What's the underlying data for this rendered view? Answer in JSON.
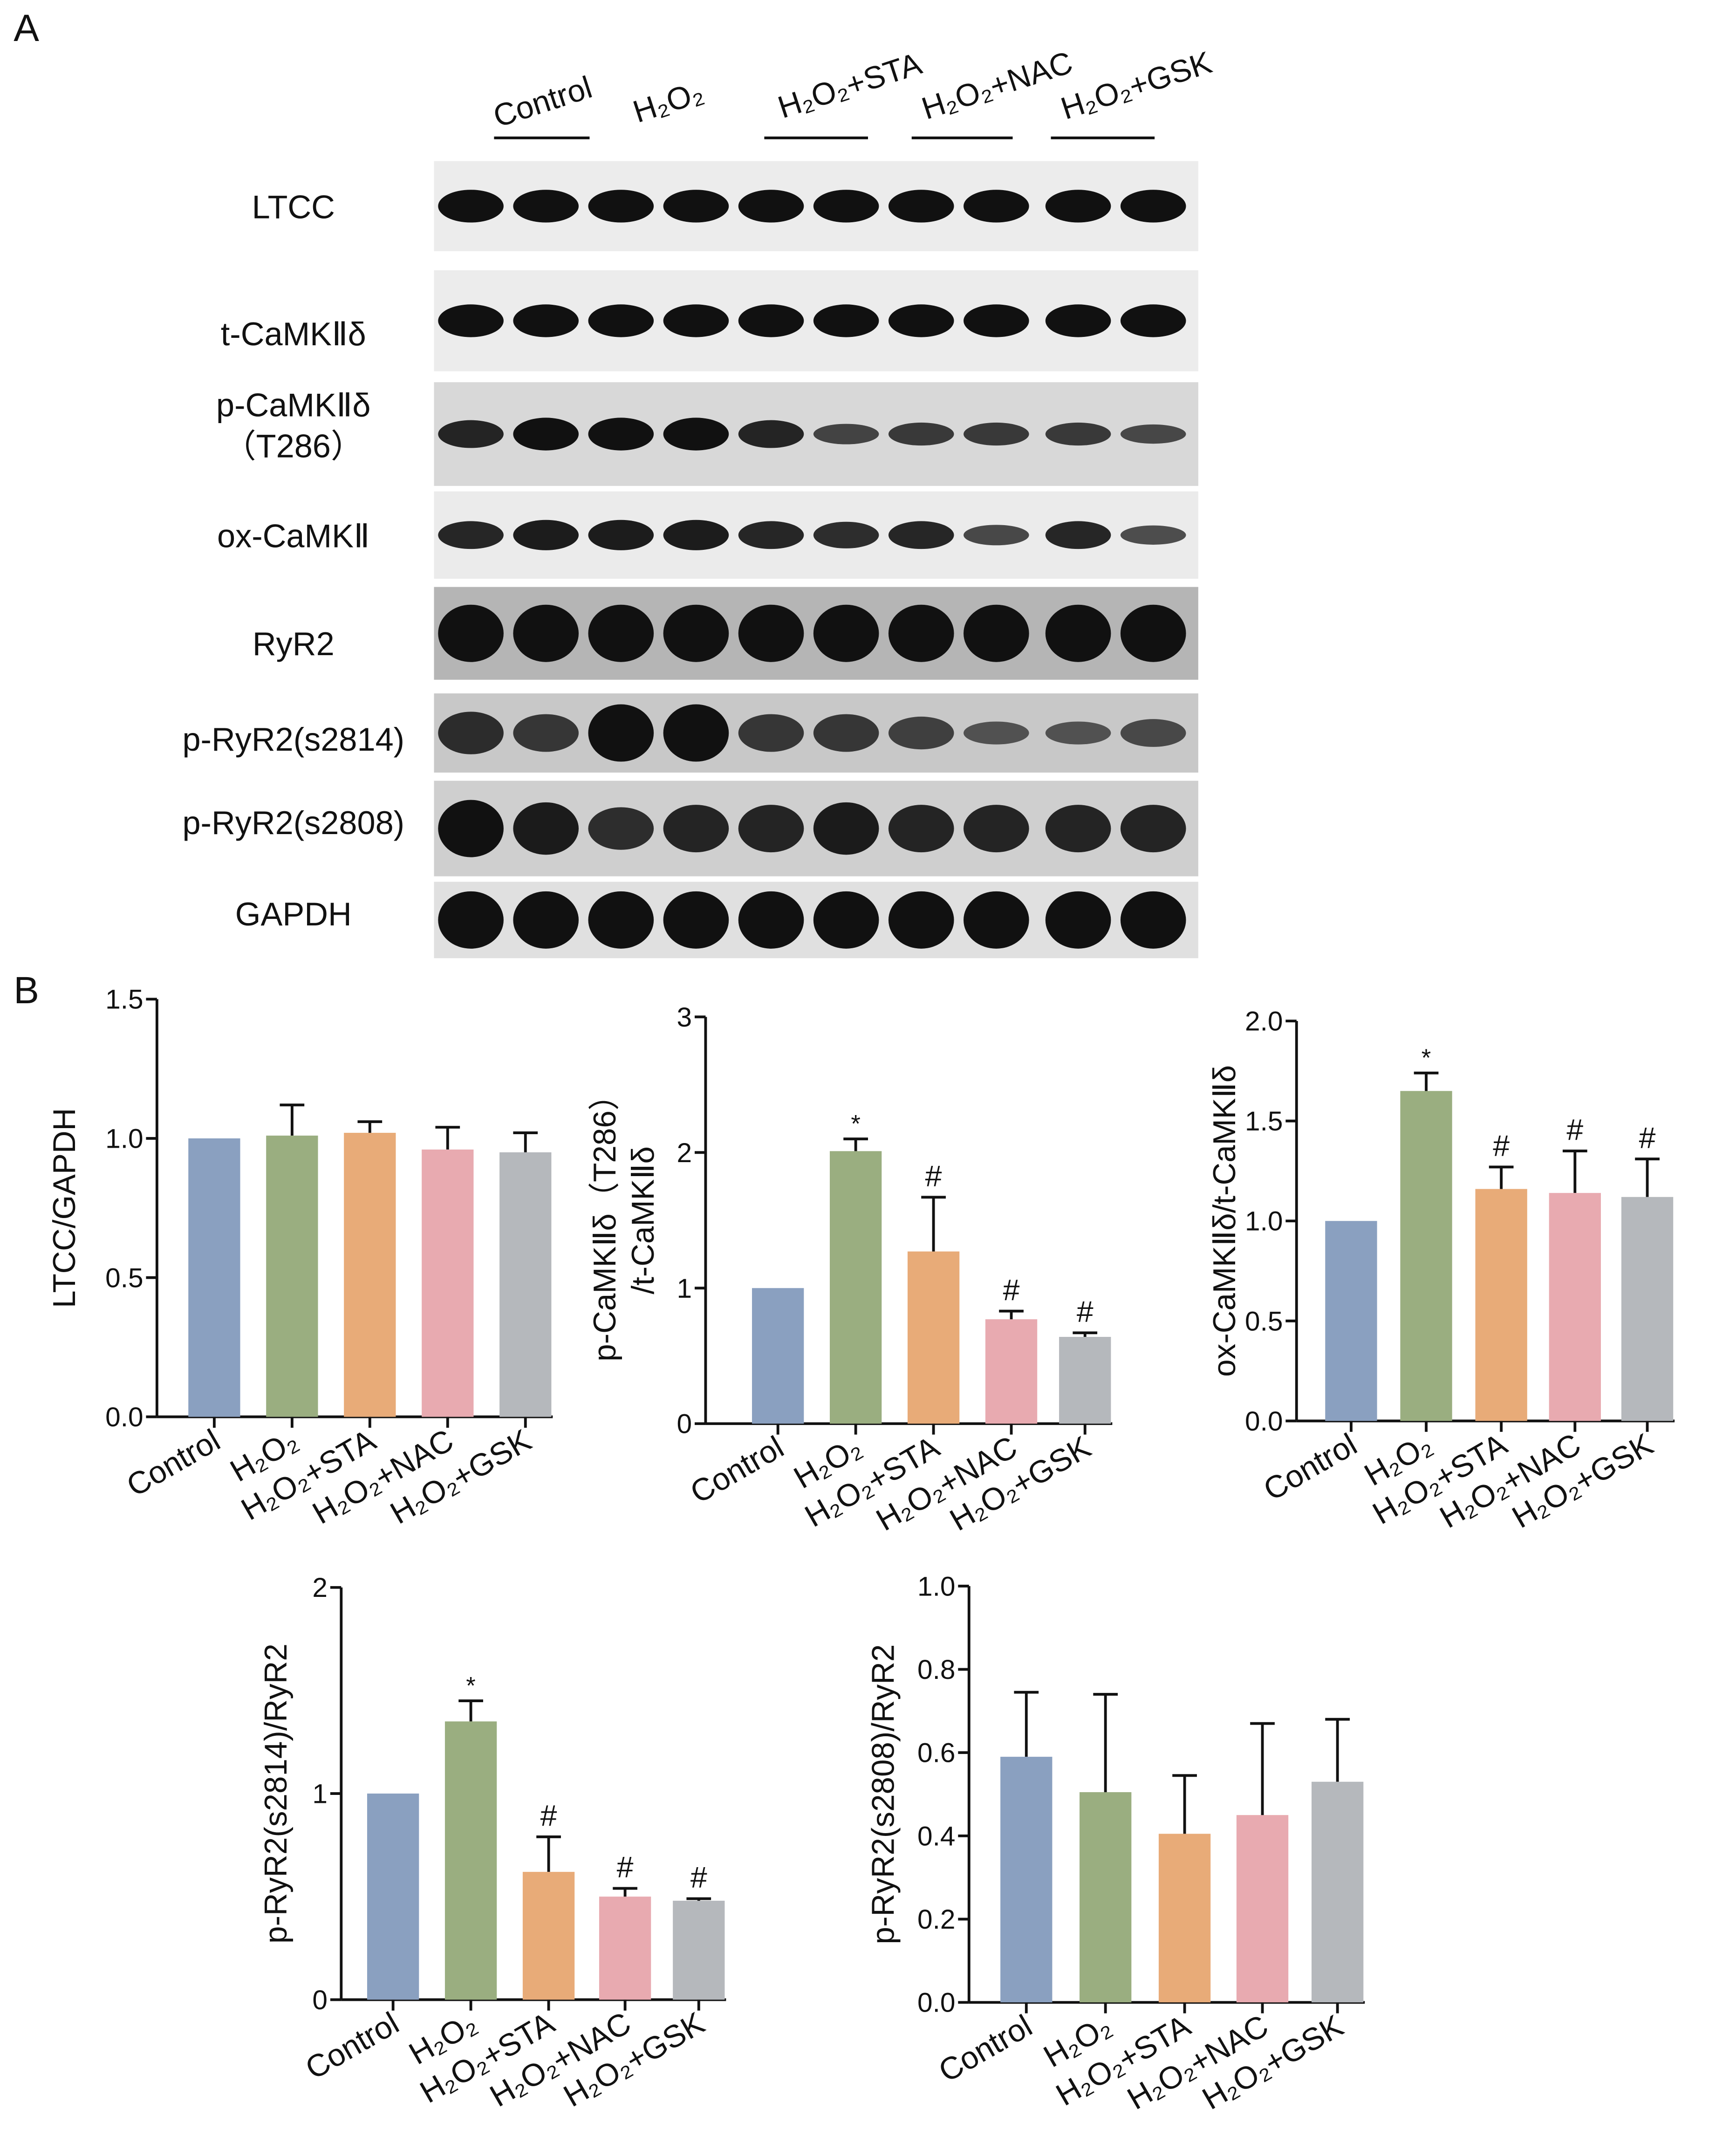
{
  "panel_labels": [
    "A",
    "B"
  ],
  "blot": {
    "groups": [
      "Control",
      "H₂O₂",
      "H₂O₂+STA",
      "H₂O₂+NAC",
      "H₂O₂+GSK"
    ],
    "rows": [
      [
        "LTCC"
      ],
      [
        "t-CaMKⅡδ"
      ],
      [
        "p-CaMKⅡδ",
        "（T286）"
      ],
      [
        "ox-CaMKⅡ"
      ],
      [
        "RyR2"
      ],
      [
        "p-RyR2(s2814)"
      ],
      [
        "p-RyR2(s2808)"
      ],
      [
        "GAPDH"
      ]
    ]
  },
  "chart_data": [
    {
      "type": "bar",
      "ylabel": [
        "LTCC/GAPDH"
      ],
      "categories": [
        "Control",
        "H₂O₂",
        "H₂O₂+STA",
        "H₂O₂+NAC",
        "H₂O₂+GSK"
      ],
      "values": [
        1.0,
        1.01,
        1.02,
        0.96,
        0.95
      ],
      "errors": [
        0,
        0.11,
        0.04,
        0.08,
        0.07
      ],
      "annotations": [
        null,
        null,
        null,
        null,
        null
      ],
      "colors": [
        "#8aa0c0",
        "#9aae80",
        "#e8ab78",
        "#e8aab0",
        "#b5b8bc"
      ],
      "ylim": [
        0,
        1.5
      ],
      "yticks": [
        {
          "value": 0,
          "label": "0.0"
        },
        0.5,
        {
          "value": 1,
          "label": "1.0"
        },
        1.5
      ]
    },
    {
      "type": "bar",
      "ylabel": [
        "p-CaMKⅡδ（T286）",
        "/t-CaMKⅡδ"
      ],
      "categories": [
        "Control",
        "H₂O₂",
        "H₂O₂+STA",
        "H₂O₂+NAC",
        "H₂O₂+GSK"
      ],
      "values": [
        1.0,
        2.01,
        1.27,
        0.77,
        0.64
      ],
      "errors": [
        0,
        0.09,
        0.4,
        0.06,
        0.03
      ],
      "annotations": [
        null,
        "*",
        "#",
        "#",
        "#"
      ],
      "colors": [
        "#8aa0c0",
        "#9aae80",
        "#e8ab78",
        "#e8aab0",
        "#b5b8bc"
      ],
      "ylim": [
        0,
        3
      ],
      "yticks": [
        0,
        1,
        2,
        3
      ]
    },
    {
      "type": "bar",
      "ylabel": [
        "ox-CaMKⅡδ/t-CaMKⅡδ"
      ],
      "categories": [
        "Control",
        "H₂O₂",
        "H₂O₂+STA",
        "H₂O₂+NAC",
        "H₂O₂+GSK"
      ],
      "values": [
        1.0,
        1.65,
        1.16,
        1.14,
        1.12
      ],
      "errors": [
        0,
        0.09,
        0.11,
        0.21,
        0.19
      ],
      "annotations": [
        null,
        "*",
        "#",
        "#",
        "#"
      ],
      "colors": [
        "#8aa0c0",
        "#9aae80",
        "#e8ab78",
        "#e8aab0",
        "#b5b8bc"
      ],
      "ylim": [
        0,
        2
      ],
      "yticks": [
        {
          "value": 0,
          "label": "0.0"
        },
        0.5,
        {
          "value": 1,
          "label": "1.0"
        },
        1.5,
        {
          "value": 2,
          "label": "2.0"
        }
      ]
    },
    {
      "type": "bar",
      "ylabel": [
        "p-RyR2(s2814)/RyR2"
      ],
      "categories": [
        "Control",
        "H₂O₂",
        "H₂O₂+STA",
        "H₂O₂+NAC",
        "H₂O₂+GSK"
      ],
      "values": [
        1.0,
        1.35,
        0.62,
        0.5,
        0.48
      ],
      "errors": [
        0,
        0.1,
        0.17,
        0.04,
        0.01
      ],
      "annotations": [
        null,
        "*",
        "#",
        "#",
        "#"
      ],
      "colors": [
        "#8aa0c0",
        "#9aae80",
        "#e8ab78",
        "#e8aab0",
        "#b5b8bc"
      ],
      "ylim": [
        0,
        2
      ],
      "yticks": [
        0,
        1,
        2
      ]
    },
    {
      "type": "bar",
      "ylabel": [
        "p-RyR2(s2808)/RyR2"
      ],
      "categories": [
        "Control",
        "H₂O₂",
        "H₂O₂+STA",
        "H₂O₂+NAC",
        "H₂O₂+GSK"
      ],
      "values": [
        0.59,
        0.505,
        0.405,
        0.45,
        0.53
      ],
      "errors": [
        0.155,
        0.235,
        0.14,
        0.22,
        0.15
      ],
      "annotations": [
        null,
        null,
        null,
        null,
        null
      ],
      "colors": [
        "#8aa0c0",
        "#9aae80",
        "#e8ab78",
        "#e8aab0",
        "#b5b8bc"
      ],
      "ylim": [
        0,
        1
      ],
      "yticks": [
        {
          "value": 0,
          "label": "0.0"
        },
        0.2,
        0.4,
        0.6,
        0.8,
        {
          "value": 1,
          "label": "1.0"
        }
      ]
    }
  ]
}
